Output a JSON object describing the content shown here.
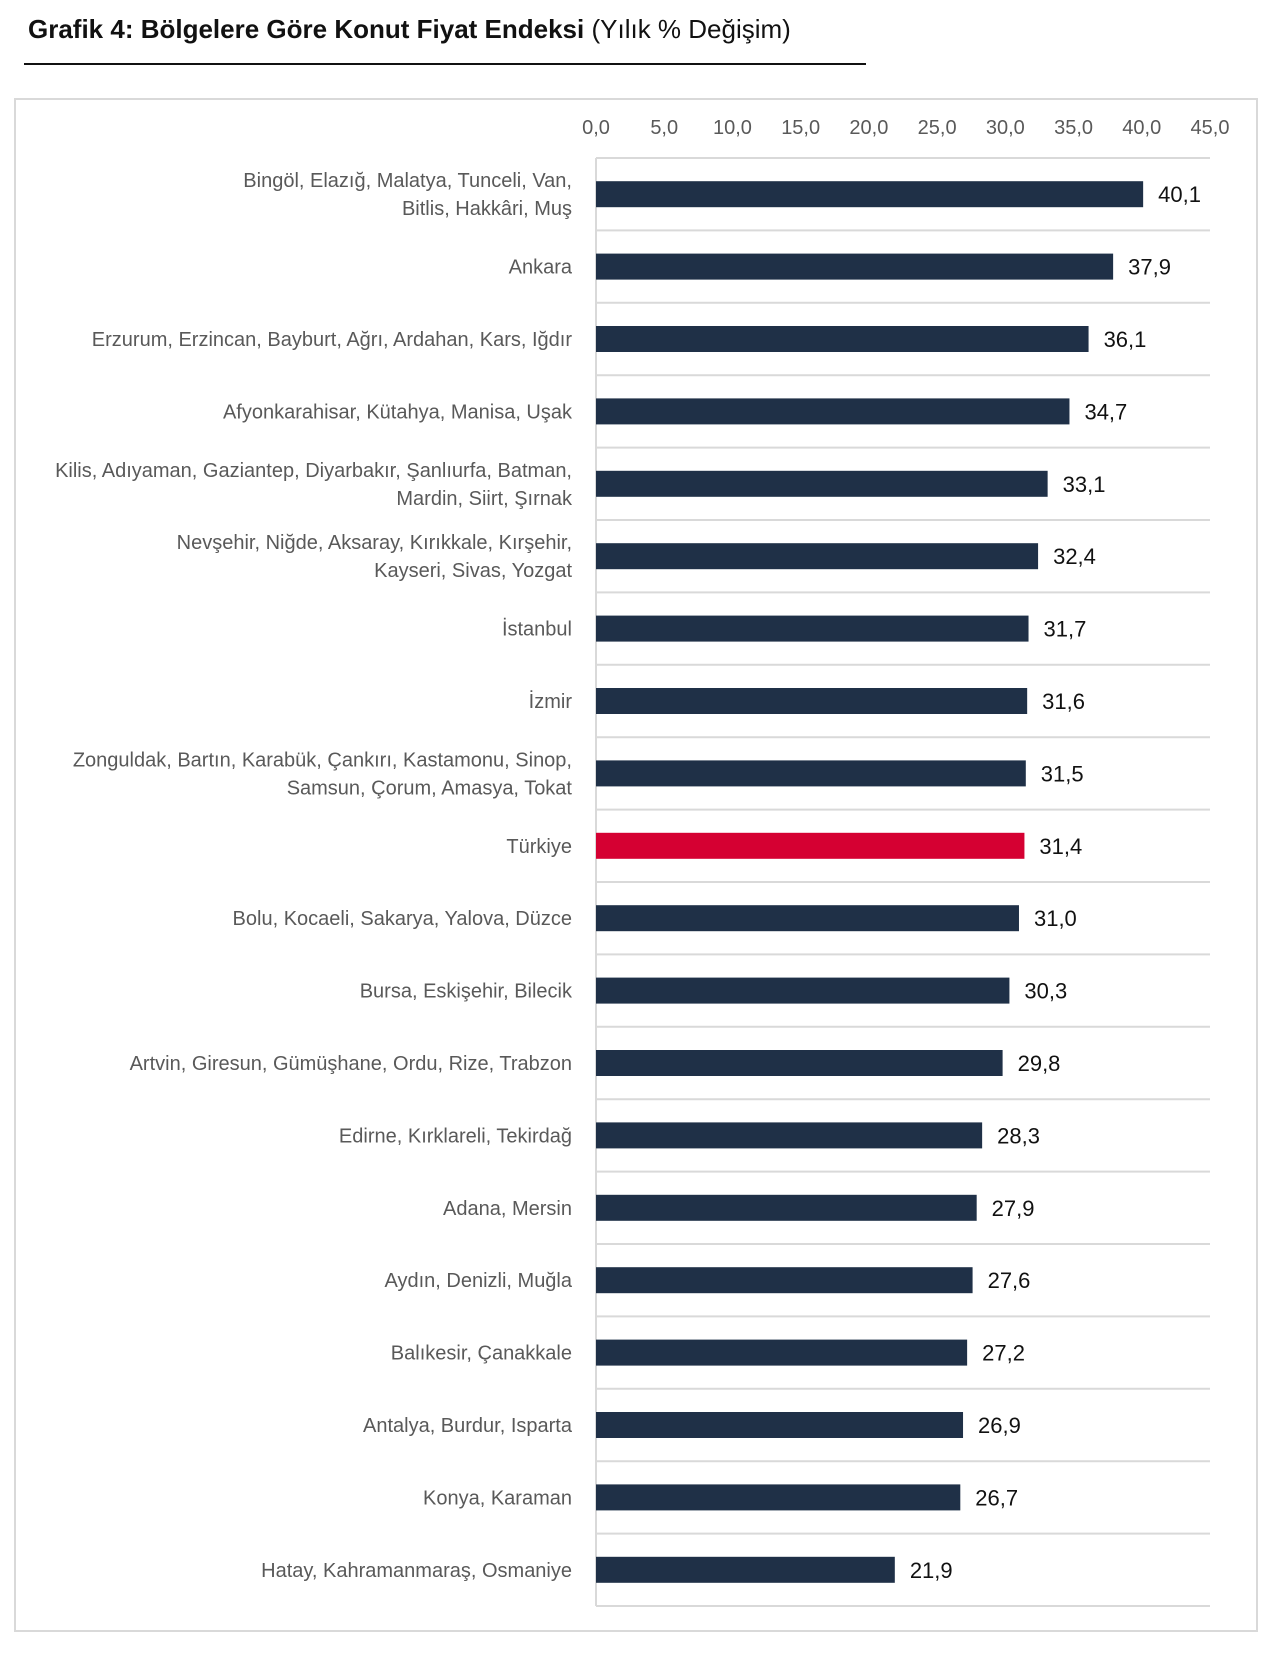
{
  "title": {
    "bold": "Grafik 4: Bölgelere Göre Konut Fiyat Endeksi",
    "normal": "(Yılık % Değişim)"
  },
  "colors": {
    "bar": "#1f3047",
    "highlight": "#d50032",
    "grid": "#d9d9d9",
    "axis_text": "#595959",
    "value_text": "#111111"
  },
  "chart_data": {
    "type": "bar",
    "orientation": "horizontal",
    "categories": [
      [
        "Bingöl, Elazığ, Malatya, Tunceli, Van,",
        "Bitlis, Hakkâri, Muş"
      ],
      [
        "Ankara"
      ],
      [
        "Erzurum, Erzincan, Bayburt, Ağrı, Ardahan, Kars, Iğdır"
      ],
      [
        "Afyonkarahisar, Kütahya, Manisa, Uşak"
      ],
      [
        "Kilis, Adıyaman, Gaziantep, Diyarbakır, Şanlıurfa, Batman,",
        "Mardin, Siirt, Şırnak"
      ],
      [
        "Nevşehir, Niğde, Aksaray, Kırıkkale, Kırşehir,",
        "Kayseri, Sivas, Yozgat"
      ],
      [
        "İstanbul"
      ],
      [
        "İzmir"
      ],
      [
        "Zonguldak, Bartın, Karabük, Çankırı, Kastamonu, Sinop,",
        "Samsun, Çorum, Amasya, Tokat"
      ],
      [
        "Türkiye"
      ],
      [
        "Bolu, Kocaeli, Sakarya, Yalova, Düzce"
      ],
      [
        "Bursa, Eskişehir, Bilecik"
      ],
      [
        "Artvin, Giresun, Gümüşhane, Ordu, Rize, Trabzon"
      ],
      [
        "Edirne, Kırklareli, Tekirdağ"
      ],
      [
        "Adana, Mersin"
      ],
      [
        "Aydın, Denizli, Muğla"
      ],
      [
        "Balıkesir, Çanakkale"
      ],
      [
        "Antalya, Burdur, Isparta"
      ],
      [
        "Konya, Karaman"
      ],
      [
        "Hatay, Kahramanmaraş, Osmaniye"
      ]
    ],
    "values": [
      40.1,
      37.9,
      36.1,
      34.7,
      33.1,
      32.4,
      31.7,
      31.6,
      31.5,
      31.4,
      31.0,
      30.3,
      29.8,
      28.3,
      27.9,
      27.6,
      27.2,
      26.9,
      26.7,
      21.9
    ],
    "value_labels": [
      "40,1",
      "37,9",
      "36,1",
      "34,7",
      "33,1",
      "32,4",
      "31,7",
      "31,6",
      "31,5",
      "31,4",
      "31,0",
      "30,3",
      "29,8",
      "28,3",
      "27,9",
      "27,6",
      "27,2",
      "26,9",
      "26,7",
      "21,9"
    ],
    "highlight_category": "Türkiye",
    "xlim": [
      0,
      45
    ],
    "xticks": [
      0,
      5,
      10,
      15,
      20,
      25,
      30,
      35,
      40,
      45
    ],
    "xtick_labels": [
      "0,0",
      "5,0",
      "10,0",
      "15,0",
      "20,0",
      "25,0",
      "30,0",
      "35,0",
      "40,0",
      "45,0"
    ],
    "x_axis_position": "top",
    "gridlines": "horizontal separators between categories",
    "legend": "none"
  }
}
